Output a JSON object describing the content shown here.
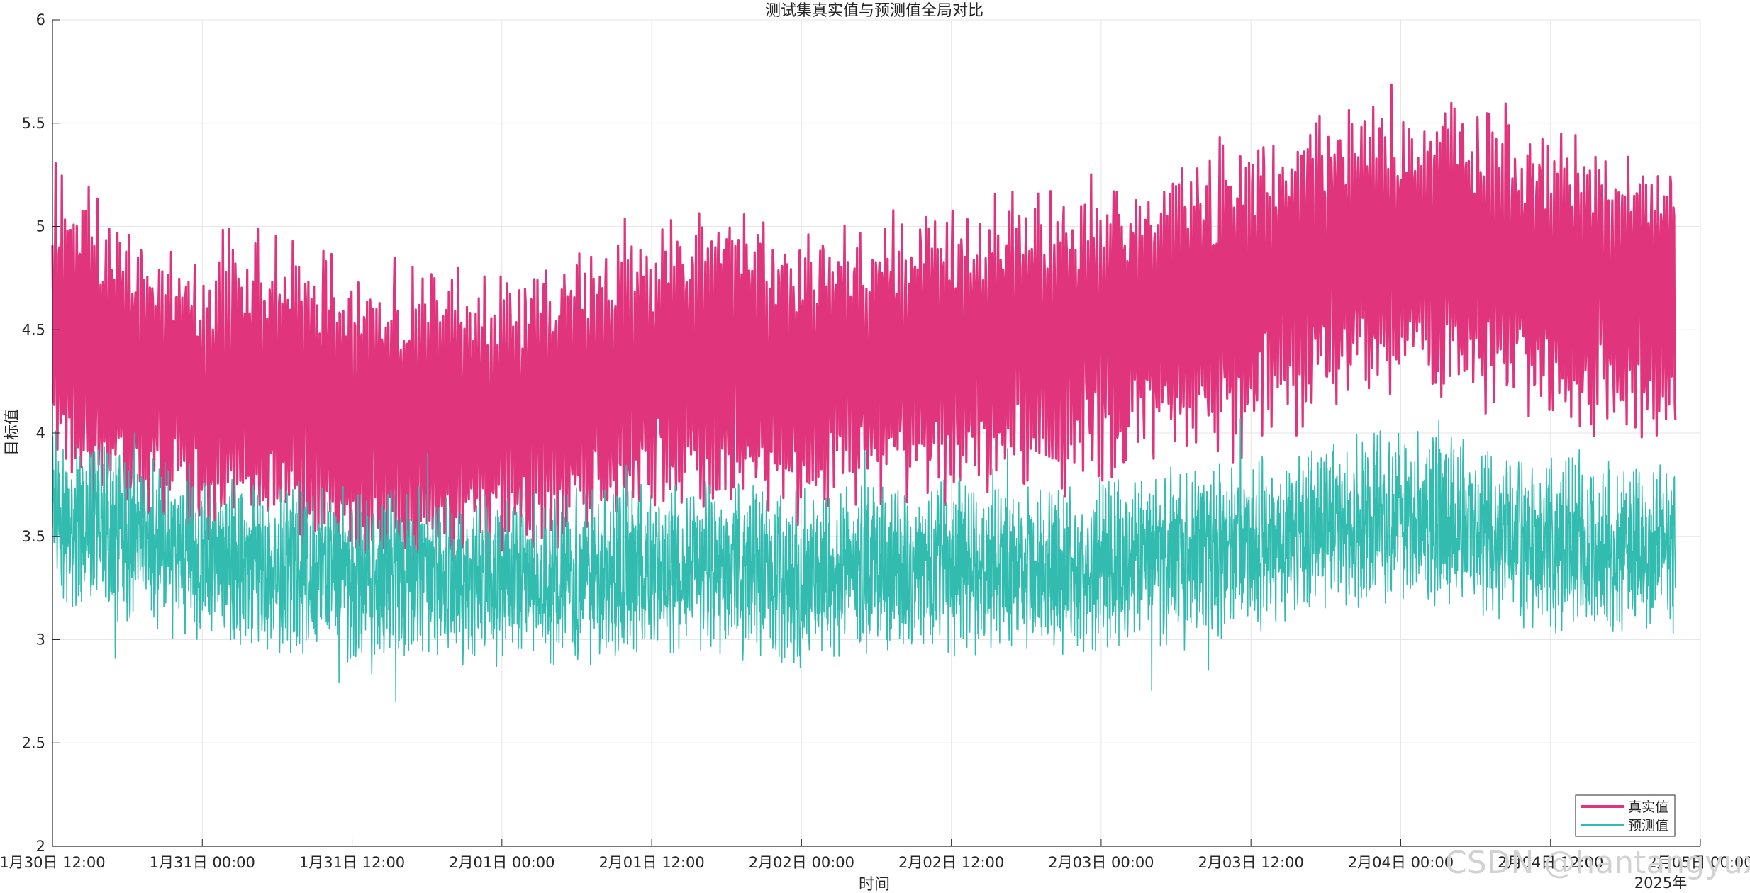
{
  "chart_data": {
    "type": "line",
    "title": "测试集真实值与预测值全局对比",
    "xlabel": "时间",
    "ylabel": "目标值",
    "x_secondary_label": "2025年",
    "xlim": [
      "2025-01-30T12:00",
      "2025-02-05T00:00"
    ],
    "ylim": [
      2,
      6
    ],
    "yticks": [
      2,
      2.5,
      3,
      3.5,
      4,
      4.5,
      5,
      5.5,
      6
    ],
    "ytick_labels": [
      "2",
      "2.5",
      "3",
      "3.5",
      "4",
      "4.5",
      "5",
      "5.5",
      "6"
    ],
    "xticks": [
      {
        "t": "2025-01-30T12:00",
        "label": "1月30日 12:00"
      },
      {
        "t": "2025-01-31T00:00",
        "label": "1月31日 00:00"
      },
      {
        "t": "2025-01-31T12:00",
        "label": "1月31日 12:00"
      },
      {
        "t": "2025-02-01T00:00",
        "label": "2月01日 00:00"
      },
      {
        "t": "2025-02-01T12:00",
        "label": "2月01日 12:00"
      },
      {
        "t": "2025-02-02T00:00",
        "label": "2月02日 00:00"
      },
      {
        "t": "2025-02-02T12:00",
        "label": "2月02日 12:00"
      },
      {
        "t": "2025-02-03T00:00",
        "label": "2月03日 00:00"
      },
      {
        "t": "2025-02-03T12:00",
        "label": "2月03日 12:00"
      },
      {
        "t": "2025-02-04T00:00",
        "label": "2月04日 00:00"
      },
      {
        "t": "2025-02-04T12:00",
        "label": "2月04日 12:00"
      },
      {
        "t": "2025-02-05T00:00",
        "label": "2月05日 00:00"
      }
    ],
    "grid": true,
    "legend": "bottom-right",
    "series": [
      {
        "name": "真实值",
        "color": "#e0357d",
        "x": [
          "2025-01-30T12:00",
          "2025-01-30T18:00",
          "2025-01-31T00:00",
          "2025-01-31T06:00",
          "2025-01-31T12:00",
          "2025-01-31T18:00",
          "2025-02-01T00:00",
          "2025-02-01T06:00",
          "2025-02-01T12:00",
          "2025-02-01T18:00",
          "2025-02-02T00:00",
          "2025-02-02T06:00",
          "2025-02-02T12:00",
          "2025-02-02T18:00",
          "2025-02-03T00:00",
          "2025-02-03T06:00",
          "2025-02-03T12:00",
          "2025-02-03T18:00",
          "2025-02-04T00:00",
          "2025-02-04T06:00",
          "2025-02-04T12:00",
          "2025-02-04T18:00"
        ],
        "y": [
          4.55,
          4.3,
          4.2,
          4.25,
          4.1,
          4.05,
          4.1,
          4.2,
          4.3,
          4.35,
          4.3,
          4.35,
          4.4,
          4.45,
          4.5,
          4.6,
          4.7,
          4.85,
          4.9,
          4.85,
          4.75,
          4.7
        ]
      },
      {
        "name": "预测值",
        "color": "#32bcb0",
        "x": [
          "2025-01-30T12:00",
          "2025-01-30T18:00",
          "2025-01-31T00:00",
          "2025-01-31T06:00",
          "2025-01-31T12:00",
          "2025-01-31T18:00",
          "2025-02-01T00:00",
          "2025-02-01T06:00",
          "2025-02-01T12:00",
          "2025-02-01T18:00",
          "2025-02-02T00:00",
          "2025-02-02T06:00",
          "2025-02-02T12:00",
          "2025-02-02T18:00",
          "2025-02-03T00:00",
          "2025-02-03T06:00",
          "2025-02-03T12:00",
          "2025-02-03T18:00",
          "2025-02-04T00:00",
          "2025-02-04T06:00",
          "2025-02-04T12:00",
          "2025-02-04T18:00"
        ],
        "y": [
          3.6,
          3.5,
          3.4,
          3.35,
          3.3,
          3.3,
          3.3,
          3.3,
          3.35,
          3.35,
          3.3,
          3.35,
          3.35,
          3.35,
          3.35,
          3.4,
          3.45,
          3.55,
          3.6,
          3.55,
          3.45,
          3.45
        ]
      }
    ]
  },
  "watermark": "CSDN @hantangyuxi"
}
